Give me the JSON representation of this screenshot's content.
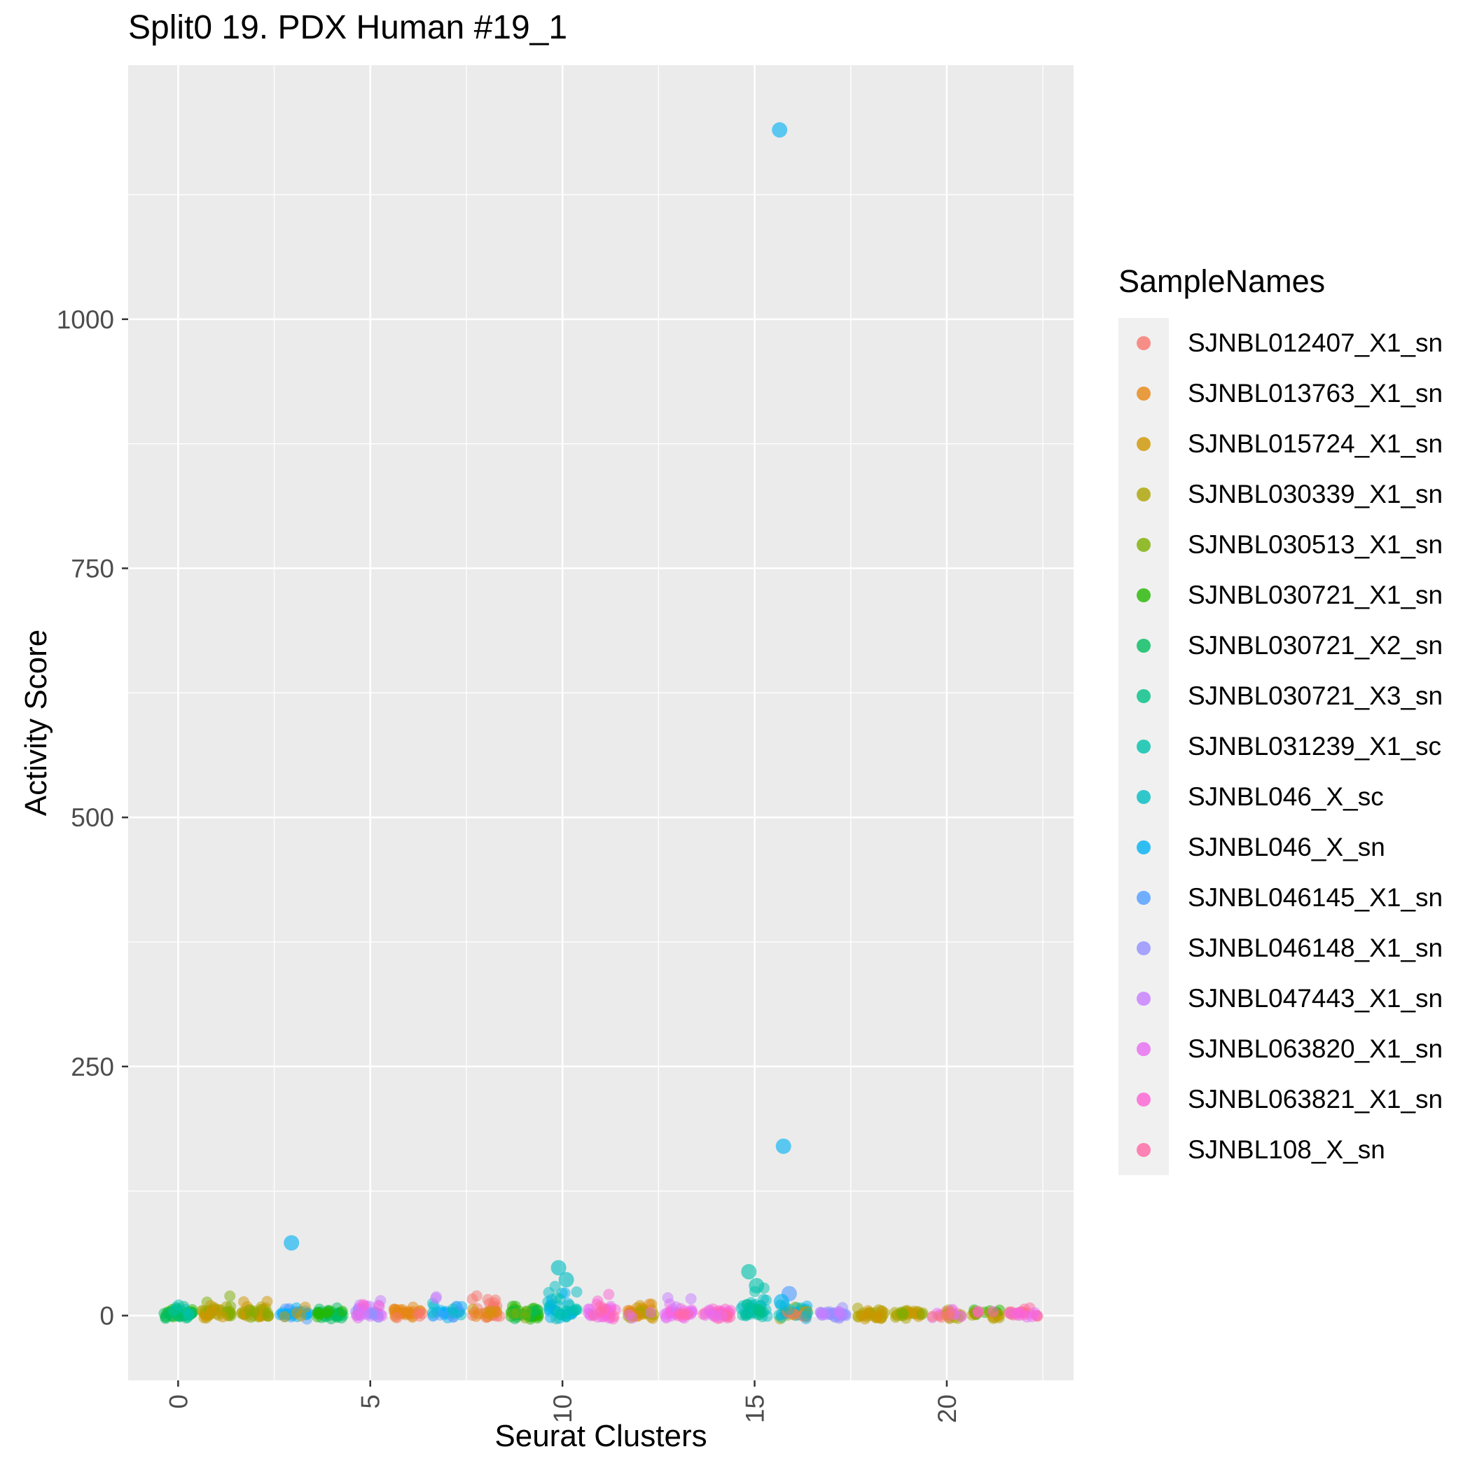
{
  "chart_data": {
    "type": "scatter",
    "title": "Split0 19. PDX Human #19_1",
    "xlabel": "Seurat Clusters",
    "ylabel": "Activity Score",
    "legend_title": "SampleNames",
    "x_ticks": [
      0,
      5,
      10,
      15,
      20
    ],
    "y_ticks": [
      0,
      250,
      500,
      750,
      1000
    ],
    "x_minor": [
      2.5,
      7.5,
      12.5,
      17.5,
      22.5
    ],
    "y_minor": [
      125,
      375,
      625,
      875,
      1125
    ],
    "xlim": [
      -1.3,
      23.3
    ],
    "ylim": [
      -65,
      1255
    ],
    "panel_bg": "#EBEBEB",
    "grid_color": "#FFFFFF",
    "tick_label_color": "#4D4D4D",
    "axis_tick_color": "#333333",
    "samples": [
      {
        "name": "SJNBL012407_X1_sn",
        "color": "#F8766D"
      },
      {
        "name": "SJNBL013763_X1_sn",
        "color": "#E68613"
      },
      {
        "name": "SJNBL015724_X1_sn",
        "color": "#CD9600"
      },
      {
        "name": "SJNBL030339_X1_sn",
        "color": "#ABA300"
      },
      {
        "name": "SJNBL030513_X1_sn",
        "color": "#7CAE00"
      },
      {
        "name": "SJNBL030721_X1_sn",
        "color": "#24B700"
      },
      {
        "name": "SJNBL030721_X2_sn",
        "color": "#00BD5F"
      },
      {
        "name": "SJNBL030721_X3_sn",
        "color": "#00C085"
      },
      {
        "name": "SJNBL031239_X1_sc",
        "color": "#00C1AB"
      },
      {
        "name": "SJNBL046_X_sc",
        "color": "#00BDC2"
      },
      {
        "name": "SJNBL046_X_sn",
        "color": "#00B2F3"
      },
      {
        "name": "SJNBL046145_X1_sn",
        "color": "#4F9DFF"
      },
      {
        "name": "SJNBL046148_X1_sn",
        "color": "#9290FF"
      },
      {
        "name": "SJNBL047443_X1_sn",
        "color": "#C77CFF"
      },
      {
        "name": "SJNBL063820_X1_sn",
        "color": "#E76BF3"
      },
      {
        "name": "SJNBL063821_X1_sn",
        "color": "#FD61D3"
      },
      {
        "name": "SJNBL108_X_sn",
        "color": "#FF67A4"
      }
    ],
    "groups": [
      {
        "cluster": 0,
        "sample": 6,
        "n": 22,
        "y0": 0,
        "y1": 5
      },
      {
        "cluster": 0,
        "sample": 8,
        "n": 12,
        "y0": 0,
        "y1": 8
      },
      {
        "cluster": 0,
        "sample": 7,
        "n": 8,
        "y0": 0,
        "y1": 4
      },
      {
        "cluster": 0,
        "sample": 9,
        "n": 5,
        "y0": 0,
        "y1": 10
      },
      {
        "cluster": 1,
        "sample": 4,
        "n": 26,
        "y0": 0,
        "y1": 7
      },
      {
        "cluster": 1,
        "sample": 5,
        "n": 8,
        "y0": 0,
        "y1": 22
      },
      {
        "cluster": 1,
        "sample": 3,
        "n": 7,
        "y0": 0,
        "y1": 8
      },
      {
        "cluster": 2,
        "sample": 4,
        "n": 22,
        "y0": 0,
        "y1": 6
      },
      {
        "cluster": 2,
        "sample": 3,
        "n": 10,
        "y0": 0,
        "y1": 18
      },
      {
        "cluster": 2,
        "sample": 5,
        "n": 5,
        "y0": 0,
        "y1": 5
      },
      {
        "cluster": 3,
        "sample": 12,
        "n": 16,
        "y0": 0,
        "y1": 8
      },
      {
        "cluster": 3,
        "sample": 11,
        "n": 12,
        "y0": 0,
        "y1": 10
      },
      {
        "cluster": 3,
        "sample": 3,
        "n": 4,
        "y0": 0,
        "y1": 6
      },
      {
        "cluster": 4,
        "sample": 7,
        "n": 26,
        "y0": 0,
        "y1": 5
      },
      {
        "cluster": 4,
        "sample": 6,
        "n": 8,
        "y0": 0,
        "y1": 4
      },
      {
        "cluster": 5,
        "sample": 14,
        "n": 18,
        "y0": 0,
        "y1": 16
      },
      {
        "cluster": 5,
        "sample": 13,
        "n": 10,
        "y0": 0,
        "y1": 8
      },
      {
        "cluster": 5,
        "sample": 16,
        "n": 4,
        "y0": 0,
        "y1": 12
      },
      {
        "cluster": 5,
        "sample": 15,
        "n": 4,
        "y0": 0,
        "y1": 8
      },
      {
        "cluster": 6,
        "sample": 2,
        "n": 26,
        "y0": 0,
        "y1": 8
      },
      {
        "cluster": 6,
        "sample": 1,
        "n": 4,
        "y0": 0,
        "y1": 5
      },
      {
        "cluster": 7,
        "sample": 11,
        "n": 16,
        "y0": 0,
        "y1": 10
      },
      {
        "cluster": 7,
        "sample": 12,
        "n": 9,
        "y0": 0,
        "y1": 8
      },
      {
        "cluster": 7,
        "sample": 10,
        "n": 5,
        "y0": 0,
        "y1": 15
      },
      {
        "cluster": 7,
        "sample": 14,
        "n": 2,
        "y0": 12,
        "y1": 18
      },
      {
        "cluster": 8,
        "sample": 1,
        "n": 24,
        "y0": 0,
        "y1": 22
      },
      {
        "cluster": 8,
        "sample": 3,
        "n": 5,
        "y0": 0,
        "y1": 8
      },
      {
        "cluster": 8,
        "sample": 2,
        "n": 4,
        "y0": 0,
        "y1": 6
      },
      {
        "cluster": 9,
        "sample": 6,
        "n": 26,
        "y0": 0,
        "y1": 7
      },
      {
        "cluster": 9,
        "sample": 7,
        "n": 8,
        "y0": 0,
        "y1": 4
      },
      {
        "cluster": 9,
        "sample": 5,
        "n": 4,
        "y0": 0,
        "y1": 6
      },
      {
        "cluster": 10,
        "sample": 10,
        "n": 18,
        "y0": 0,
        "y1": 30
      },
      {
        "cluster": 10,
        "sample": 11,
        "n": 12,
        "y0": 0,
        "y1": 22
      },
      {
        "cluster": 10,
        "sample": 9,
        "n": 10,
        "y0": 0,
        "y1": 16
      },
      {
        "cluster": 11,
        "sample": 15,
        "n": 22,
        "y0": 0,
        "y1": 10
      },
      {
        "cluster": 11,
        "sample": 16,
        "n": 8,
        "y0": 0,
        "y1": 22
      },
      {
        "cluster": 11,
        "sample": 17,
        "n": 5,
        "y0": 0,
        "y1": 8
      },
      {
        "cluster": 12,
        "sample": 3,
        "n": 22,
        "y0": 0,
        "y1": 10
      },
      {
        "cluster": 12,
        "sample": 4,
        "n": 9,
        "y0": 0,
        "y1": 6
      },
      {
        "cluster": 12,
        "sample": 2,
        "n": 5,
        "y0": 0,
        "y1": 20
      },
      {
        "cluster": 12,
        "sample": 15,
        "n": 3,
        "y0": 0,
        "y1": 6
      },
      {
        "cluster": 13,
        "sample": 15,
        "n": 20,
        "y0": 0,
        "y1": 10
      },
      {
        "cluster": 13,
        "sample": 16,
        "n": 6,
        "y0": 0,
        "y1": 6
      },
      {
        "cluster": 13,
        "sample": 14,
        "n": 3,
        "y0": 8,
        "y1": 20
      },
      {
        "cluster": 13,
        "sample": 17,
        "n": 3,
        "y0": 0,
        "y1": 5
      },
      {
        "cluster": 14,
        "sample": 16,
        "n": 18,
        "y0": 0,
        "y1": 6
      },
      {
        "cluster": 14,
        "sample": 17,
        "n": 8,
        "y0": 0,
        "y1": 5
      },
      {
        "cluster": 14,
        "sample": 15,
        "n": 5,
        "y0": 0,
        "y1": 5
      },
      {
        "cluster": 15,
        "sample": 9,
        "n": 20,
        "y0": 0,
        "y1": 26
      },
      {
        "cluster": 15,
        "sample": 10,
        "n": 10,
        "y0": 0,
        "y1": 20
      },
      {
        "cluster": 15,
        "sample": 8,
        "n": 6,
        "y0": 0,
        "y1": 12
      },
      {
        "cluster": 16,
        "sample": 4,
        "n": 10,
        "y0": 0,
        "y1": 8
      },
      {
        "cluster": 16,
        "sample": 9,
        "n": 8,
        "y0": 0,
        "y1": 10
      },
      {
        "cluster": 16,
        "sample": 11,
        "n": 7,
        "y0": 0,
        "y1": 12
      },
      {
        "cluster": 16,
        "sample": 3,
        "n": 6,
        "y0": 0,
        "y1": 6
      },
      {
        "cluster": 16,
        "sample": 1,
        "n": 4,
        "y0": 0,
        "y1": 5
      },
      {
        "cluster": 16,
        "sample": 10,
        "n": 4,
        "y0": 0,
        "y1": 8
      },
      {
        "cluster": 17,
        "sample": 13,
        "n": 22,
        "y0": 0,
        "y1": 6
      },
      {
        "cluster": 17,
        "sample": 14,
        "n": 6,
        "y0": 0,
        "y1": 5
      },
      {
        "cluster": 18,
        "sample": 4,
        "n": 20,
        "y0": 0,
        "y1": 5
      },
      {
        "cluster": 18,
        "sample": 3,
        "n": 8,
        "y0": 0,
        "y1": 5
      },
      {
        "cluster": 19,
        "sample": 4,
        "n": 18,
        "y0": 0,
        "y1": 5
      },
      {
        "cluster": 19,
        "sample": 3,
        "n": 6,
        "y0": 0,
        "y1": 5
      },
      {
        "cluster": 19,
        "sample": 5,
        "n": 4,
        "y0": 0,
        "y1": 4
      },
      {
        "cluster": 20,
        "sample": 17,
        "n": 9,
        "y0": 0,
        "y1": 5
      },
      {
        "cluster": 20,
        "sample": 4,
        "n": 8,
        "y0": 0,
        "y1": 5
      },
      {
        "cluster": 20,
        "sample": 15,
        "n": 6,
        "y0": 0,
        "y1": 5
      },
      {
        "cluster": 20,
        "sample": 1,
        "n": 4,
        "y0": 0,
        "y1": 4
      },
      {
        "cluster": 21,
        "sample": 4,
        "n": 13,
        "y0": 0,
        "y1": 5
      },
      {
        "cluster": 21,
        "sample": 6,
        "n": 6,
        "y0": 0,
        "y1": 5
      },
      {
        "cluster": 21,
        "sample": 3,
        "n": 5,
        "y0": 0,
        "y1": 5
      },
      {
        "cluster": 21,
        "sample": 16,
        "n": 3,
        "y0": 0,
        "y1": 4
      },
      {
        "cluster": 22,
        "sample": 17,
        "n": 9,
        "y0": 0,
        "y1": 5
      },
      {
        "cluster": 22,
        "sample": 1,
        "n": 6,
        "y0": 0,
        "y1": 5
      },
      {
        "cluster": 22,
        "sample": 15,
        "n": 6,
        "y0": 0,
        "y1": 5
      },
      {
        "cluster": 22,
        "sample": 16,
        "n": 4,
        "y0": 0,
        "y1": 4
      }
    ],
    "outliers": [
      {
        "cluster": 16,
        "sample": 11,
        "y": 1190,
        "dx": -0.35
      },
      {
        "cluster": 16,
        "sample": 11,
        "y": 170,
        "dx": -0.25
      },
      {
        "cluster": 3,
        "sample": 11,
        "y": 73,
        "dx": -0.05
      },
      {
        "cluster": 10,
        "sample": 10,
        "y": 48,
        "dx": -0.1
      },
      {
        "cluster": 10,
        "sample": 10,
        "y": 36,
        "dx": 0.1
      },
      {
        "cluster": 15,
        "sample": 9,
        "y": 44,
        "dx": -0.15
      },
      {
        "cluster": 15,
        "sample": 9,
        "y": 30,
        "dx": 0.05
      },
      {
        "cluster": 16,
        "sample": 12,
        "y": 22,
        "dx": -0.1
      },
      {
        "cluster": 16,
        "sample": 11,
        "y": 14,
        "dx": -0.3
      }
    ]
  }
}
